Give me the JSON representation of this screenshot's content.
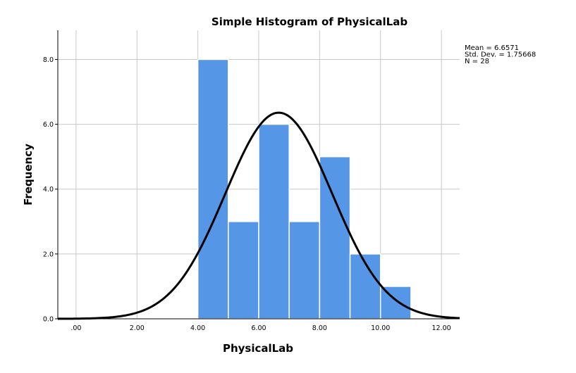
{
  "chart_data": {
    "type": "bar",
    "title": "Simple Histogram of PhysicalLab",
    "xlabel": "PhysicalLab",
    "ylabel": "Frequency",
    "xlim": [
      -0.6,
      12.6
    ],
    "ylim": [
      0,
      8.9
    ],
    "x_ticks": [
      0,
      2,
      4,
      6,
      8,
      10,
      12
    ],
    "x_tick_labels": [
      ".00",
      "2.00",
      "4.00",
      "6.00",
      "8.00",
      "10.00",
      "12.00"
    ],
    "y_ticks": [
      0,
      2,
      4,
      6,
      8
    ],
    "y_tick_labels": [
      "0.0",
      "2.0",
      "4.0",
      "6.0",
      "8.0"
    ],
    "bins": [
      {
        "start": 4,
        "end": 5,
        "count": 8
      },
      {
        "start": 5,
        "end": 6,
        "count": 3
      },
      {
        "start": 6,
        "end": 7,
        "count": 6
      },
      {
        "start": 7,
        "end": 8,
        "count": 3
      },
      {
        "start": 8,
        "end": 9,
        "count": 5
      },
      {
        "start": 9,
        "end": 10,
        "count": 2
      },
      {
        "start": 10,
        "end": 11,
        "count": 1
      }
    ],
    "normal_curve": {
      "mean": 6.6571,
      "sd": 1.75668,
      "n": 28,
      "bin_width": 1
    },
    "stats_lines": [
      "Mean = 6.6571",
      "Std. Dev. = 1.75668",
      "N = 28"
    ],
    "bar_color": "#5596e6",
    "curve_color": "#000000",
    "grid": true
  }
}
